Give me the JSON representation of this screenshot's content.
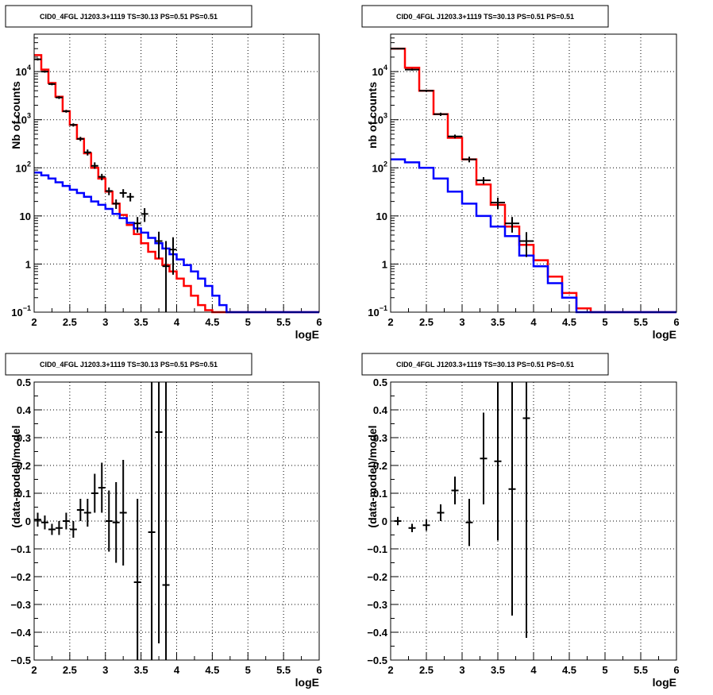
{
  "chart_data": [
    {
      "type": "line",
      "title": "CID0_4FGL J1203.3+1119 TS=30.13 PS=0.51 PS=0.51",
      "xlabel": "logE",
      "ylabel": "Nb of counts",
      "xlim": [
        2,
        6
      ],
      "ylim": [
        0.1,
        60000
      ],
      "yscale": "log",
      "grid": true,
      "xticks": [
        "2",
        "2.5",
        "3",
        "3.5",
        "4",
        "4.5",
        "5",
        "5.5",
        "6"
      ],
      "yticks": [
        {
          "v": 0.1,
          "label": "10",
          "exp": "−1"
        },
        {
          "v": 1,
          "label": "1",
          "exp": ""
        },
        {
          "v": 10,
          "label": "10",
          "exp": ""
        },
        {
          "v": 100,
          "label": "10",
          "exp": "2"
        },
        {
          "v": 1000,
          "label": "10",
          "exp": "3"
        },
        {
          "v": 10000,
          "label": "10",
          "exp": "4"
        }
      ],
      "edges": [
        2.0,
        2.1,
        2.2,
        2.3,
        2.4,
        2.5,
        2.6,
        2.7,
        2.8,
        2.9,
        3.0,
        3.1,
        3.2,
        3.3,
        3.4,
        3.5,
        3.6,
        3.7,
        3.8,
        3.9,
        4.0,
        4.1,
        4.2,
        4.3,
        4.4,
        4.5,
        4.6,
        4.7,
        4.8,
        4.9,
        5.0,
        5.1,
        5.2,
        5.3,
        5.4,
        5.5,
        5.6,
        5.7,
        5.8,
        5.9,
        6.0
      ],
      "series": [
        {
          "color": "#ff0000",
          "values": [
            22000,
            11000,
            5800,
            3000,
            1500,
            780,
            400,
            200,
            100,
            60,
            32,
            18,
            10.5,
            6.5,
            4.2,
            2.7,
            1.8,
            1.3,
            0.95,
            0.7,
            0.5,
            0.35,
            0.22,
            0.14,
            0.11,
            0.1,
            0.1,
            0.1,
            0.1,
            0.1,
            0.1,
            0.1,
            0.1,
            0.1,
            0.1,
            0.1,
            0.1,
            0.1,
            0.1,
            0.1
          ]
        },
        {
          "color": "#0000ff",
          "values": [
            80,
            70,
            60,
            50,
            42,
            35,
            30,
            25,
            20,
            17,
            14,
            11,
            9,
            7.2,
            5.5,
            4.5,
            3.5,
            2.7,
            2.1,
            1.6,
            1.25,
            0.95,
            0.7,
            0.5,
            0.35,
            0.22,
            0.14,
            0.1,
            0.1,
            0.1,
            0.1,
            0.1,
            0.1,
            0.1,
            0.1,
            0.1,
            0.1,
            0.1,
            0.1,
            0.1
          ]
        }
      ],
      "points": [
        {
          "x": 2.05,
          "y": 18000,
          "lo": 17000,
          "hi": 19000
        },
        {
          "x": 2.15,
          "y": 10000,
          "lo": 9500,
          "hi": 10500
        },
        {
          "x": 2.25,
          "y": 5500,
          "lo": 5200,
          "hi": 5800
        },
        {
          "x": 2.35,
          "y": 2900,
          "lo": 2700,
          "hi": 3100
        },
        {
          "x": 2.45,
          "y": 1500,
          "lo": 1400,
          "hi": 1600
        },
        {
          "x": 2.55,
          "y": 780,
          "lo": 720,
          "hi": 840
        },
        {
          "x": 2.65,
          "y": 400,
          "lo": 360,
          "hi": 440
        },
        {
          "x": 2.75,
          "y": 210,
          "lo": 180,
          "hi": 240
        },
        {
          "x": 2.85,
          "y": 110,
          "lo": 95,
          "hi": 130
        },
        {
          "x": 2.95,
          "y": 65,
          "lo": 55,
          "hi": 75
        },
        {
          "x": 3.05,
          "y": 33,
          "lo": 27,
          "hi": 39
        },
        {
          "x": 3.15,
          "y": 18,
          "lo": 14,
          "hi": 22
        },
        {
          "x": 3.25,
          "y": 30,
          "lo": 24,
          "hi": 36
        },
        {
          "x": 3.35,
          "y": 25,
          "lo": 20,
          "hi": 30
        },
        {
          "x": 3.45,
          "y": 7,
          "lo": 4.5,
          "hi": 9.5
        },
        {
          "x": 3.55,
          "y": 11,
          "lo": 7.5,
          "hi": 14.5
        },
        {
          "x": 3.75,
          "y": 3,
          "lo": 1.3,
          "hi": 4.7
        },
        {
          "x": 3.85,
          "y": 0.9,
          "lo": 0.1,
          "hi": 3.0
        },
        {
          "x": 3.95,
          "y": 2,
          "lo": 0.6,
          "hi": 3.6
        }
      ]
    },
    {
      "type": "line",
      "title": "CID0_4FGL J1203.3+1119 TS=30.13 PS=0.51 PS=0.51",
      "xlabel": "logE",
      "ylabel": "nb of counts",
      "xlim": [
        2,
        6
      ],
      "ylim": [
        0.1,
        60000
      ],
      "yscale": "log",
      "grid": true,
      "xticks": [
        "2",
        "2.5",
        "3",
        "3.5",
        "4",
        "4.5",
        "5",
        "5.5",
        "6"
      ],
      "yticks": [
        {
          "v": 0.1,
          "label": "10",
          "exp": "−1"
        },
        {
          "v": 1,
          "label": "1",
          "exp": ""
        },
        {
          "v": 10,
          "label": "10",
          "exp": ""
        },
        {
          "v": 100,
          "label": "10",
          "exp": "2"
        },
        {
          "v": 1000,
          "label": "10",
          "exp": "3"
        },
        {
          "v": 10000,
          "label": "10",
          "exp": "4"
        }
      ],
      "edges": [
        2.0,
        2.2,
        2.4,
        2.6,
        2.8,
        3.0,
        3.2,
        3.4,
        3.6,
        3.8,
        4.0,
        4.2,
        4.4,
        4.6,
        4.8,
        5.0,
        5.2,
        5.4,
        5.6,
        5.8,
        6.0
      ],
      "series": [
        {
          "color": "#ff0000",
          "values": [
            30000,
            12000,
            4000,
            1300,
            420,
            150,
            45,
            17,
            6,
            2.5,
            1.2,
            0.55,
            0.25,
            0.12,
            0.1,
            0.1,
            0.1,
            0.1,
            0.1,
            0.1
          ]
        },
        {
          "color": "#0000ff",
          "values": [
            150,
            130,
            100,
            60,
            32,
            18,
            10,
            6,
            3.8,
            1.5,
            0.9,
            0.4,
            0.2,
            0.1,
            0.1,
            0.1,
            0.1,
            0.1,
            0.1,
            0.1
          ]
        }
      ],
      "points": [
        {
          "x": 2.1,
          "y": 30000,
          "lo": 29000,
          "hi": 31000
        },
        {
          "x": 2.3,
          "y": 11000,
          "lo": 10500,
          "hi": 11500
        },
        {
          "x": 2.5,
          "y": 4000,
          "lo": 3800,
          "hi": 4200
        },
        {
          "x": 2.7,
          "y": 1300,
          "lo": 1200,
          "hi": 1400
        },
        {
          "x": 2.9,
          "y": 450,
          "lo": 410,
          "hi": 490
        },
        {
          "x": 3.1,
          "y": 150,
          "lo": 130,
          "hi": 170
        },
        {
          "x": 3.3,
          "y": 55,
          "lo": 46,
          "hi": 64
        },
        {
          "x": 3.5,
          "y": 19,
          "lo": 14,
          "hi": 24
        },
        {
          "x": 3.7,
          "y": 7,
          "lo": 4.5,
          "hi": 9.5
        },
        {
          "x": 3.9,
          "y": 3,
          "lo": 1.4,
          "hi": 4.6
        }
      ]
    },
    {
      "type": "scatter",
      "title": "CID0_4FGL J1203.3+1119 TS=30.13 PS=0.51 PS=0.51",
      "xlabel": "logE",
      "ylabel": "(data-model)/model",
      "xlim": [
        2,
        6
      ],
      "ylim": [
        -0.5,
        0.5
      ],
      "grid": true,
      "xticks": [
        "2",
        "2.5",
        "3",
        "3.5",
        "4",
        "4.5",
        "5",
        "5.5",
        "6"
      ],
      "yticks": [
        "−0.5",
        "−0.4",
        "−0.3",
        "−0.2",
        "−0.1",
        "0",
        "0.1",
        "0.2",
        "0.3",
        "0.4",
        "0.5"
      ],
      "points": [
        {
          "x": 2.05,
          "y": 0.005,
          "lo": -0.02,
          "hi": 0.03
        },
        {
          "x": 2.15,
          "y": -0.005,
          "lo": -0.03,
          "hi": 0.02
        },
        {
          "x": 2.25,
          "y": -0.03,
          "lo": -0.05,
          "hi": -0.01
        },
        {
          "x": 2.35,
          "y": -0.025,
          "lo": -0.05,
          "hi": 0.0
        },
        {
          "x": 2.45,
          "y": 0.0,
          "lo": -0.03,
          "hi": 0.03
        },
        {
          "x": 2.55,
          "y": -0.03,
          "lo": -0.06,
          "hi": 0.0
        },
        {
          "x": 2.65,
          "y": 0.04,
          "lo": 0.0,
          "hi": 0.08
        },
        {
          "x": 2.75,
          "y": 0.03,
          "lo": -0.02,
          "hi": 0.08
        },
        {
          "x": 2.85,
          "y": 0.1,
          "lo": 0.03,
          "hi": 0.17
        },
        {
          "x": 2.95,
          "y": 0.12,
          "lo": 0.03,
          "hi": 0.21
        },
        {
          "x": 3.05,
          "y": 0.0,
          "lo": -0.11,
          "hi": 0.11
        },
        {
          "x": 3.15,
          "y": -0.005,
          "lo": -0.15,
          "hi": 0.14
        },
        {
          "x": 3.25,
          "y": 0.03,
          "lo": -0.16,
          "hi": 0.22
        },
        {
          "x": 3.45,
          "y": -0.22,
          "lo": -0.5,
          "hi": 0.08
        },
        {
          "x": 3.65,
          "y": -0.04,
          "lo": -0.5,
          "hi": 0.5
        },
        {
          "x": 3.75,
          "y": 0.32,
          "lo": -0.44,
          "hi": 0.5
        },
        {
          "x": 3.85,
          "y": -0.23,
          "lo": -0.5,
          "hi": 0.5
        }
      ]
    },
    {
      "type": "scatter",
      "title": "CID0_4FGL J1203.3+1119 TS=30.13 PS=0.51 PS=0.51",
      "xlabel": "logE",
      "ylabel": "(data-model)/model",
      "xlim": [
        2,
        6
      ],
      "ylim": [
        -0.5,
        0.5
      ],
      "grid": true,
      "xticks": [
        "2",
        "2.5",
        "3",
        "3.5",
        "4",
        "4.5",
        "5",
        "5.5",
        "6"
      ],
      "yticks": [
        "−0.5",
        "−0.4",
        "−0.3",
        "−0.2",
        "−0.1",
        "0",
        "0.1",
        "0.2",
        "0.3",
        "0.4",
        "0.5"
      ],
      "points": [
        {
          "x": 2.1,
          "y": 0.0,
          "lo": -0.015,
          "hi": 0.015
        },
        {
          "x": 2.3,
          "y": -0.025,
          "lo": -0.04,
          "hi": -0.01
        },
        {
          "x": 2.5,
          "y": -0.015,
          "lo": -0.035,
          "hi": 0.005
        },
        {
          "x": 2.7,
          "y": 0.03,
          "lo": 0.0,
          "hi": 0.06
        },
        {
          "x": 2.9,
          "y": 0.11,
          "lo": 0.06,
          "hi": 0.16
        },
        {
          "x": 3.1,
          "y": -0.005,
          "lo": -0.09,
          "hi": 0.08
        },
        {
          "x": 3.3,
          "y": 0.225,
          "lo": 0.06,
          "hi": 0.39
        },
        {
          "x": 3.5,
          "y": 0.215,
          "lo": -0.07,
          "hi": 0.5
        },
        {
          "x": 3.7,
          "y": 0.115,
          "lo": -0.34,
          "hi": 0.5
        },
        {
          "x": 3.9,
          "y": 0.37,
          "lo": -0.42,
          "hi": 0.5
        }
      ]
    }
  ]
}
